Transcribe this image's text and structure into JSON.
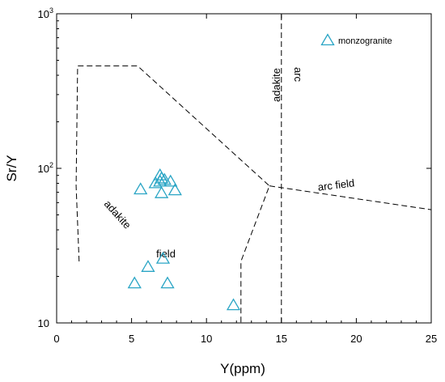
{
  "chart_data": {
    "type": "scatter",
    "xlabel": "Y(ppm)",
    "ylabel": "Sr/Y",
    "xlim": [
      0,
      25
    ],
    "ylim": [
      10,
      1000
    ],
    "y_scale": "log",
    "x_ticks": [
      "0",
      "5",
      "10",
      "15",
      "20",
      "25"
    ],
    "y_ticks": [
      {
        "value": 10,
        "label": "10",
        "exp": ""
      },
      {
        "value": 100,
        "label": "10",
        "exp": "2"
      },
      {
        "value": 1000,
        "label": "10",
        "exp": "3"
      }
    ],
    "legend": {
      "label": "monzogranite",
      "placement": "top-right"
    },
    "series": [
      {
        "name": "monzogranite",
        "points": [
          {
            "x": 6.9,
            "y": 90
          },
          {
            "x": 7.0,
            "y": 86
          },
          {
            "x": 7.2,
            "y": 84
          },
          {
            "x": 7.6,
            "y": 82
          },
          {
            "x": 6.6,
            "y": 80
          },
          {
            "x": 6.9,
            "y": 82
          },
          {
            "x": 5.6,
            "y": 73
          },
          {
            "x": 7.9,
            "y": 72
          },
          {
            "x": 7.0,
            "y": 69
          },
          {
            "x": 7.1,
            "y": 26
          },
          {
            "x": 6.1,
            "y": 23
          },
          {
            "x": 5.2,
            "y": 18
          },
          {
            "x": 7.4,
            "y": 18
          },
          {
            "x": 11.8,
            "y": 13
          }
        ]
      }
    ],
    "fields": [
      {
        "name": "adakite field",
        "boundary": [
          {
            "x": 1.5,
            "y": 25
          },
          {
            "x": 1.3,
            "y": 77
          },
          {
            "x": 1.4,
            "y": 460
          },
          {
            "x": 5.4,
            "y": 460
          },
          {
            "x": 14.2,
            "y": 77
          },
          {
            "x": 12.3,
            "y": 25
          },
          {
            "x": 12.3,
            "y": 10
          }
        ],
        "labels": [
          "adakite",
          "field"
        ]
      },
      {
        "name": "arc field",
        "boundary": [
          {
            "x": 14.2,
            "y": 77
          },
          {
            "x": 25,
            "y": 54
          }
        ],
        "labels": [
          "arc field"
        ]
      },
      {
        "name": "Y=15 divider",
        "boundary": [
          {
            "x": 15,
            "y": 10
          },
          {
            "x": 15,
            "y": 1000
          }
        ],
        "labels": [
          "adakite",
          "arc"
        ]
      }
    ]
  }
}
